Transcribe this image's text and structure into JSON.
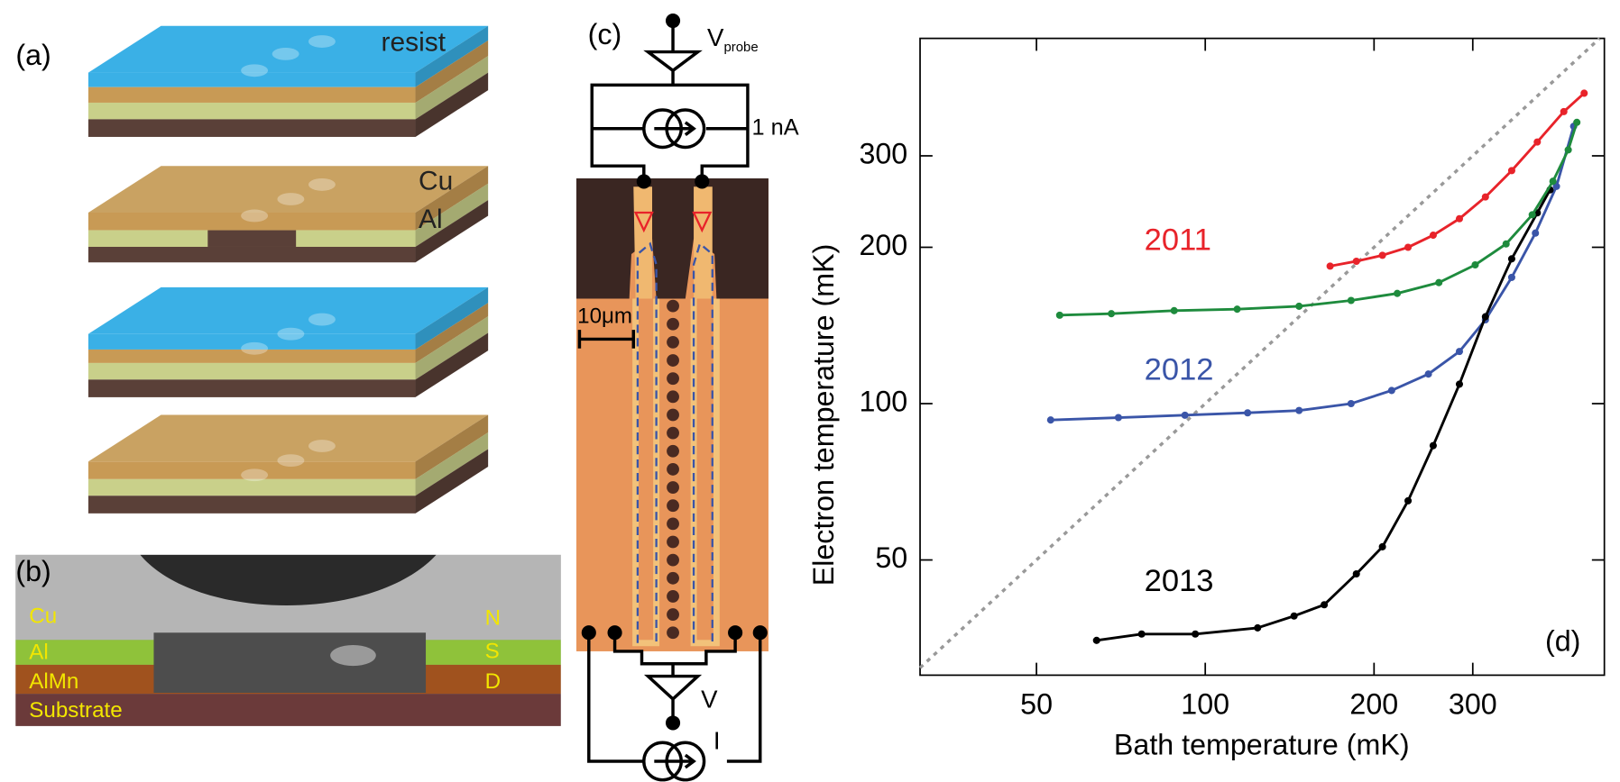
{
  "panels": {
    "a": {
      "label": "(a)",
      "resist": "resist",
      "cu": "Cu",
      "al": "Al"
    },
    "b": {
      "label": "(b)",
      "left": [
        "Cu",
        "Al",
        "AlMn",
        "Substrate"
      ],
      "right": [
        "N",
        "S",
        "D"
      ]
    },
    "c": {
      "label": "(c)",
      "v_probe": "V",
      "probe": "probe",
      "current_source": "1 nA",
      "scale_bar": "10μm",
      "v": "V",
      "i": "I"
    }
  },
  "chart_data": {
    "type": "line",
    "panel_label": "(d)",
    "xlabel": "Bath temperature (mK)",
    "ylabel": "Electron temperature (mK)",
    "xscale": "log",
    "yscale": "log",
    "xlim": [
      31,
      515
    ],
    "ylim": [
      30,
      505
    ],
    "xticks": [
      50,
      100,
      200,
      300
    ],
    "yticks": [
      50,
      100,
      200,
      300
    ],
    "identity_line": true,
    "identity_line_color": "#999999",
    "markers": true,
    "series": [
      {
        "name": "2011",
        "color": "#e8232a",
        "x": [
          167,
          186,
          207,
          230,
          255,
          284,
          316,
          352,
          391,
          436,
          474
        ],
        "values": [
          184,
          188,
          193,
          200,
          211,
          227,
          250,
          281,
          319,
          365,
          396
        ]
      },
      {
        "name": "2012",
        "color": "#3a55a8",
        "x": [
          53,
          70,
          92,
          119,
          147,
          182,
          215,
          250,
          284,
          316,
          352,
          388,
          423,
          454
        ],
        "values": [
          93,
          94,
          95,
          96,
          97,
          100,
          106,
          114,
          126,
          145,
          175,
          213,
          262,
          342
        ]
      },
      {
        "name": "2013",
        "color": "#000000",
        "x": [
          64,
          77,
          96,
          124,
          144,
          163,
          186,
          207,
          230,
          255,
          284,
          316,
          352,
          391,
          412
        ],
        "values": [
          35,
          36,
          36,
          37,
          39,
          41,
          47,
          53,
          65,
          83,
          109,
          147,
          190,
          233,
          258
        ]
      },
      {
        "color": "#1e8b3d",
        "x": [
          55,
          68,
          88,
          114,
          147,
          182,
          220,
          261,
          303,
          344,
          383,
          417,
          444,
          460
        ],
        "values": [
          148,
          149,
          151,
          152,
          154,
          158,
          163,
          171,
          185,
          203,
          231,
          268,
          308,
          348
        ]
      }
    ]
  }
}
